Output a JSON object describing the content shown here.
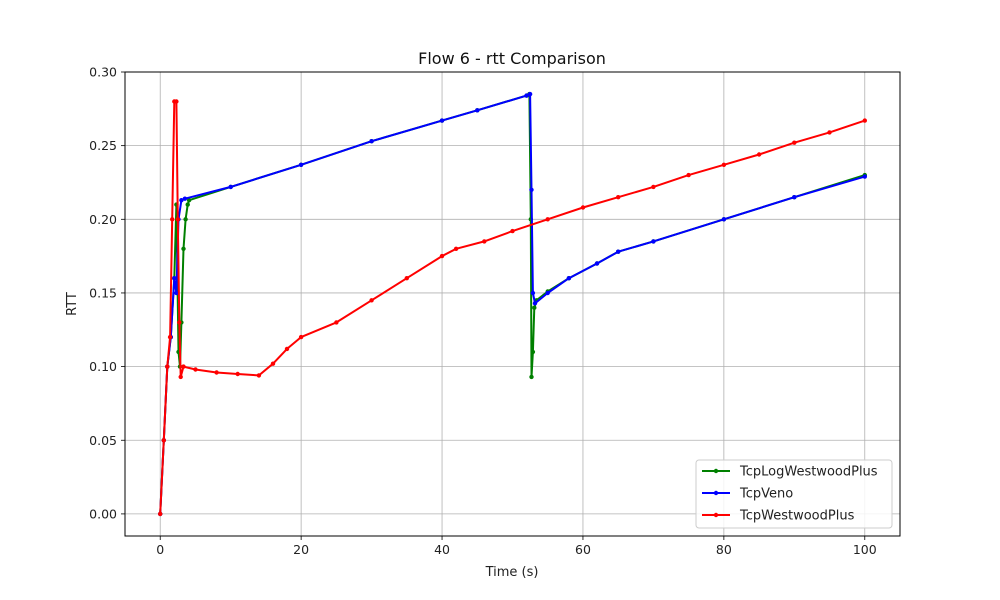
{
  "chart_data": {
    "type": "line",
    "title": "Flow 6 - rtt Comparison",
    "xlabel": "Time (s)",
    "ylabel": "RTT",
    "xlim": [
      -5,
      105
    ],
    "ylim": [
      -0.015,
      0.3
    ],
    "xticks": [
      0,
      20,
      40,
      60,
      80,
      100
    ],
    "yticks": [
      0.0,
      0.05,
      0.1,
      0.15,
      0.2,
      0.25,
      0.3
    ],
    "xtick_labels": [
      "0",
      "20",
      "40",
      "60",
      "80",
      "100"
    ],
    "ytick_labels": [
      "0.00",
      "0.05",
      "0.10",
      "0.15",
      "0.20",
      "0.25",
      "0.30"
    ],
    "grid": true,
    "legend_position": "lower-right",
    "series": [
      {
        "name": "TcpLogWestwoodPlus",
        "color": "#008000",
        "points": [
          [
            0,
            0
          ],
          [
            0.5,
            0.05
          ],
          [
            1,
            0.1
          ],
          [
            1.5,
            0.12
          ],
          [
            2,
            0.16
          ],
          [
            2.3,
            0.21
          ],
          [
            2.6,
            0.11
          ],
          [
            2.8,
            0.1
          ],
          [
            3,
            0.13
          ],
          [
            3.3,
            0.18
          ],
          [
            3.6,
            0.2
          ],
          [
            3.9,
            0.21
          ],
          [
            4.1,
            0.213
          ],
          [
            10,
            0.222
          ],
          [
            20,
            0.237
          ],
          [
            30,
            0.253
          ],
          [
            40,
            0.267
          ],
          [
            45,
            0.274
          ],
          [
            52,
            0.284
          ],
          [
            52.4,
            0.285
          ],
          [
            52.6,
            0.2
          ],
          [
            52.7,
            0.093
          ],
          [
            52.9,
            0.11
          ],
          [
            53.1,
            0.14
          ],
          [
            53.4,
            0.145
          ],
          [
            55,
            0.151
          ],
          [
            58,
            0.16
          ],
          [
            62,
            0.17
          ],
          [
            65,
            0.178
          ],
          [
            70,
            0.185
          ],
          [
            80,
            0.2
          ],
          [
            90,
            0.215
          ],
          [
            100,
            0.23
          ]
        ]
      },
      {
        "name": "TcpVeno",
        "color": "#0000ff",
        "points": [
          [
            0,
            0
          ],
          [
            0.5,
            0.05
          ],
          [
            1,
            0.1
          ],
          [
            1.5,
            0.12
          ],
          [
            2,
            0.16
          ],
          [
            2.3,
            0.15
          ],
          [
            2.6,
            0.2
          ],
          [
            3,
            0.213
          ],
          [
            3.5,
            0.214
          ],
          [
            10,
            0.222
          ],
          [
            20,
            0.237
          ],
          [
            30,
            0.253
          ],
          [
            40,
            0.267
          ],
          [
            45,
            0.274
          ],
          [
            52,
            0.284
          ],
          [
            52.5,
            0.285
          ],
          [
            52.7,
            0.22
          ],
          [
            52.9,
            0.15
          ],
          [
            53.2,
            0.143
          ],
          [
            55,
            0.15
          ],
          [
            58,
            0.16
          ],
          [
            62,
            0.17
          ],
          [
            65,
            0.178
          ],
          [
            70,
            0.185
          ],
          [
            80,
            0.2
          ],
          [
            90,
            0.215
          ],
          [
            100,
            0.229
          ]
        ]
      },
      {
        "name": "TcpWestwoodPlus",
        "color": "#ff0000",
        "points": [
          [
            0,
            0
          ],
          [
            0.5,
            0.05
          ],
          [
            1,
            0.1
          ],
          [
            1.4,
            0.12
          ],
          [
            1.7,
            0.2
          ],
          [
            2,
            0.28
          ],
          [
            2.3,
            0.28
          ],
          [
            2.5,
            0.2
          ],
          [
            2.7,
            0.13
          ],
          [
            2.9,
            0.093
          ],
          [
            3.3,
            0.1
          ],
          [
            5,
            0.098
          ],
          [
            8,
            0.096
          ],
          [
            11,
            0.095
          ],
          [
            14,
            0.094
          ],
          [
            16,
            0.102
          ],
          [
            18,
            0.112
          ],
          [
            20,
            0.12
          ],
          [
            25,
            0.13
          ],
          [
            30,
            0.145
          ],
          [
            35,
            0.16
          ],
          [
            40,
            0.175
          ],
          [
            42,
            0.18
          ],
          [
            46,
            0.185
          ],
          [
            50,
            0.192
          ],
          [
            55,
            0.2
          ],
          [
            60,
            0.208
          ],
          [
            65,
            0.215
          ],
          [
            70,
            0.222
          ],
          [
            75,
            0.23
          ],
          [
            80,
            0.237
          ],
          [
            85,
            0.244
          ],
          [
            90,
            0.252
          ],
          [
            95,
            0.259
          ],
          [
            100,
            0.267
          ]
        ]
      }
    ]
  }
}
